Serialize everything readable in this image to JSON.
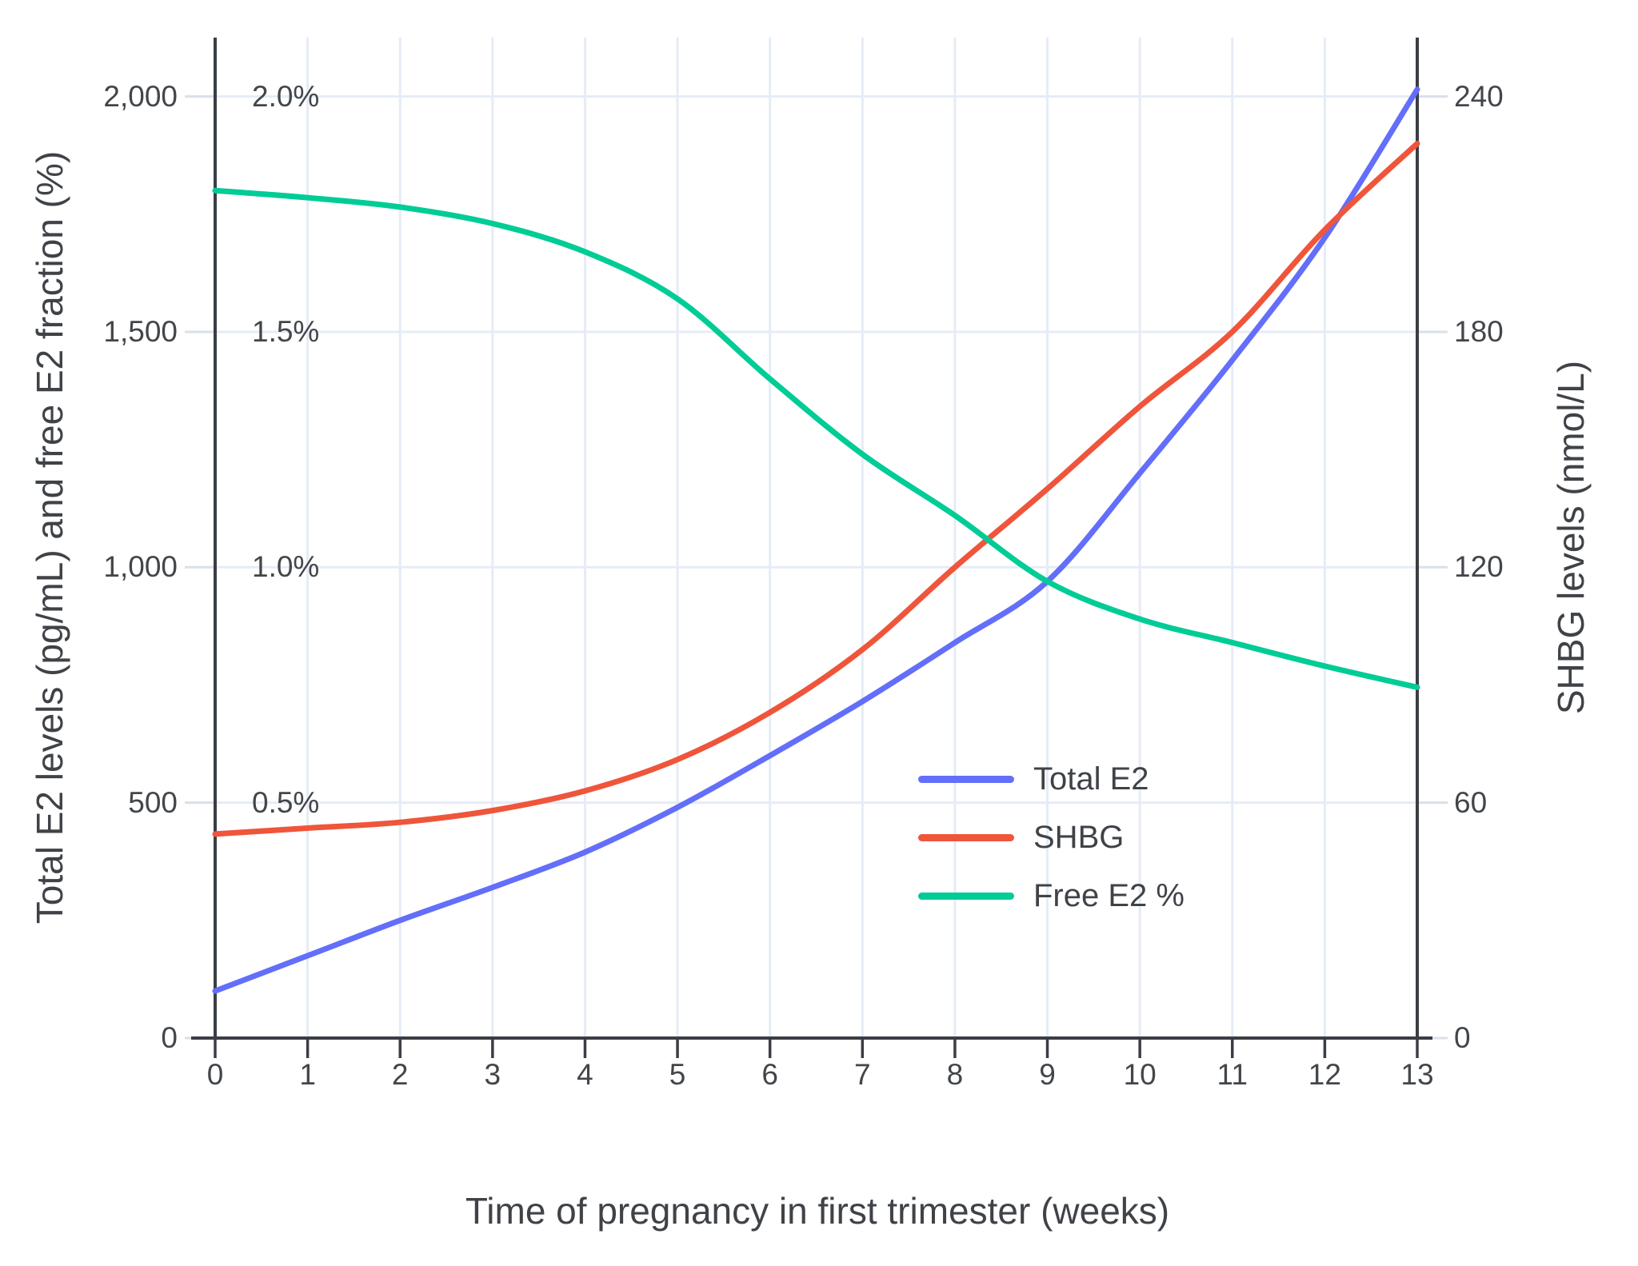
{
  "colors": {
    "total_e2": "#636efa",
    "shbg": "#ef553b",
    "free_e2_pct": "#00cc96",
    "grid": "#e6ecf6",
    "axis_line": "#3a3e44",
    "tick_light": "#d9e0ea",
    "text": "#42464b",
    "background": "#ffffff"
  },
  "chart_data": {
    "type": "line",
    "x_weeks": [
      0,
      1,
      2,
      3,
      4,
      5,
      6,
      7,
      8,
      9,
      10,
      11,
      12,
      13
    ],
    "xlabel": "Time of pregnancy in first trimester (weeks)",
    "ylabel_left": "Total E2 levels (pg/mL) and free E2 fraction (%)",
    "ylabel_right": "SHBG levels (nmol/L)",
    "legend_position": "inside lower right",
    "grid": "on",
    "series": [
      {
        "name": "Total E2",
        "yaxis": "left",
        "units": "pg/mL",
        "color": "#636efa",
        "values": [
          100,
          175,
          250,
          320,
          395,
          490,
          600,
          715,
          840,
          970,
          1200,
          1440,
          1700,
          2015
        ]
      },
      {
        "name": "SHBG",
        "yaxis": "right",
        "units": "nmol/L",
        "color": "#ef553b",
        "values": [
          52,
          53.5,
          55,
          58,
          63,
          71,
          83,
          99,
          120,
          140,
          161,
          180,
          206,
          228
        ]
      },
      {
        "name": "Free E2 %",
        "yaxis": "percent",
        "units": "%",
        "color": "#00cc96",
        "values": [
          1.8,
          1.785,
          1.765,
          1.73,
          1.67,
          1.57,
          1.4,
          1.24,
          1.11,
          0.97,
          0.89,
          0.84,
          0.79,
          0.745
        ]
      }
    ],
    "axes": {
      "x": {
        "range": [
          0,
          13
        ],
        "title": "Time of pregnancy in first trimester (weeks)",
        "ticks": [
          {
            "v": 0,
            "label": "0"
          },
          {
            "v": 1,
            "label": "1"
          },
          {
            "v": 2,
            "label": "2"
          },
          {
            "v": 3,
            "label": "3"
          },
          {
            "v": 4,
            "label": "4"
          },
          {
            "v": 5,
            "label": "5"
          },
          {
            "v": 6,
            "label": "6"
          },
          {
            "v": 7,
            "label": "7"
          },
          {
            "v": 8,
            "label": "8"
          },
          {
            "v": 9,
            "label": "9"
          },
          {
            "v": 10,
            "label": "10"
          },
          {
            "v": 11,
            "label": "11"
          },
          {
            "v": 12,
            "label": "12"
          },
          {
            "v": 13,
            "label": "13"
          }
        ]
      },
      "y_left": {
        "range": [
          0,
          2125
        ],
        "title": "Total E2 levels (pg/mL) and free E2 fraction (%)",
        "ticks": [
          {
            "v": 0,
            "label": "0"
          },
          {
            "v": 500,
            "label": "500"
          },
          {
            "v": 1000,
            "label": "1,000"
          },
          {
            "v": 1500,
            "label": "1,500"
          },
          {
            "v": 2000,
            "label": "2,000"
          }
        ]
      },
      "y_right": {
        "range": [
          0,
          255
        ],
        "title": "SHBG levels (nmol/L)",
        "ticks": [
          {
            "v": 0,
            "label": "0"
          },
          {
            "v": 60,
            "label": "60"
          },
          {
            "v": 120,
            "label": "120"
          },
          {
            "v": 180,
            "label": "180"
          },
          {
            "v": 240,
            "label": "240"
          }
        ]
      },
      "y_percent_labels": {
        "range": [
          0,
          2.125
        ],
        "labels": [
          {
            "v": 2.0,
            "label": "2.0%"
          },
          {
            "v": 1.5,
            "label": "1.5%"
          },
          {
            "v": 1.0,
            "label": "1.0%"
          },
          {
            "v": 0.5,
            "label": "0.5%"
          }
        ]
      }
    }
  }
}
